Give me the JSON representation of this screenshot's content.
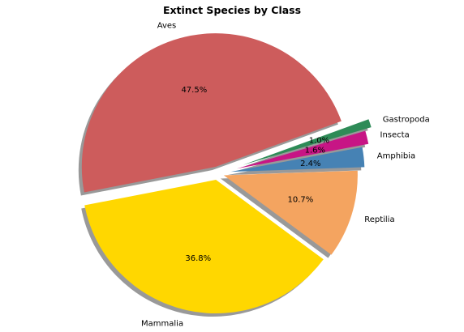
{
  "chart_data": {
    "type": "pie",
    "title": "Extinct Species by Class",
    "start_angle_deg": 20,
    "direction": "counterclockwise",
    "shadow": true,
    "slices": [
      {
        "label": "Aves",
        "value": 47.5,
        "pct_label": "47.5%",
        "color": "#cd5c5c",
        "explode": 0.05
      },
      {
        "label": "Mammalia",
        "value": 36.8,
        "pct_label": "36.8%",
        "color": "#ffd700",
        "explode": 0.05
      },
      {
        "label": "Reptilia",
        "value": 10.7,
        "pct_label": "10.7%",
        "color": "#f4a460",
        "explode": 0.05
      },
      {
        "label": "Amphibia",
        "value": 2.4,
        "pct_label": "2.4%",
        "color": "#4682b4",
        "explode": 0.1
      },
      {
        "label": "Insecta",
        "value": 1.6,
        "pct_label": "1.6%",
        "color": "#c71585",
        "explode": 0.15
      },
      {
        "label": "Gastropoda",
        "value": 1.0,
        "pct_label": "1.0%",
        "color": "#2e8b57",
        "explode": 0.2
      }
    ]
  }
}
